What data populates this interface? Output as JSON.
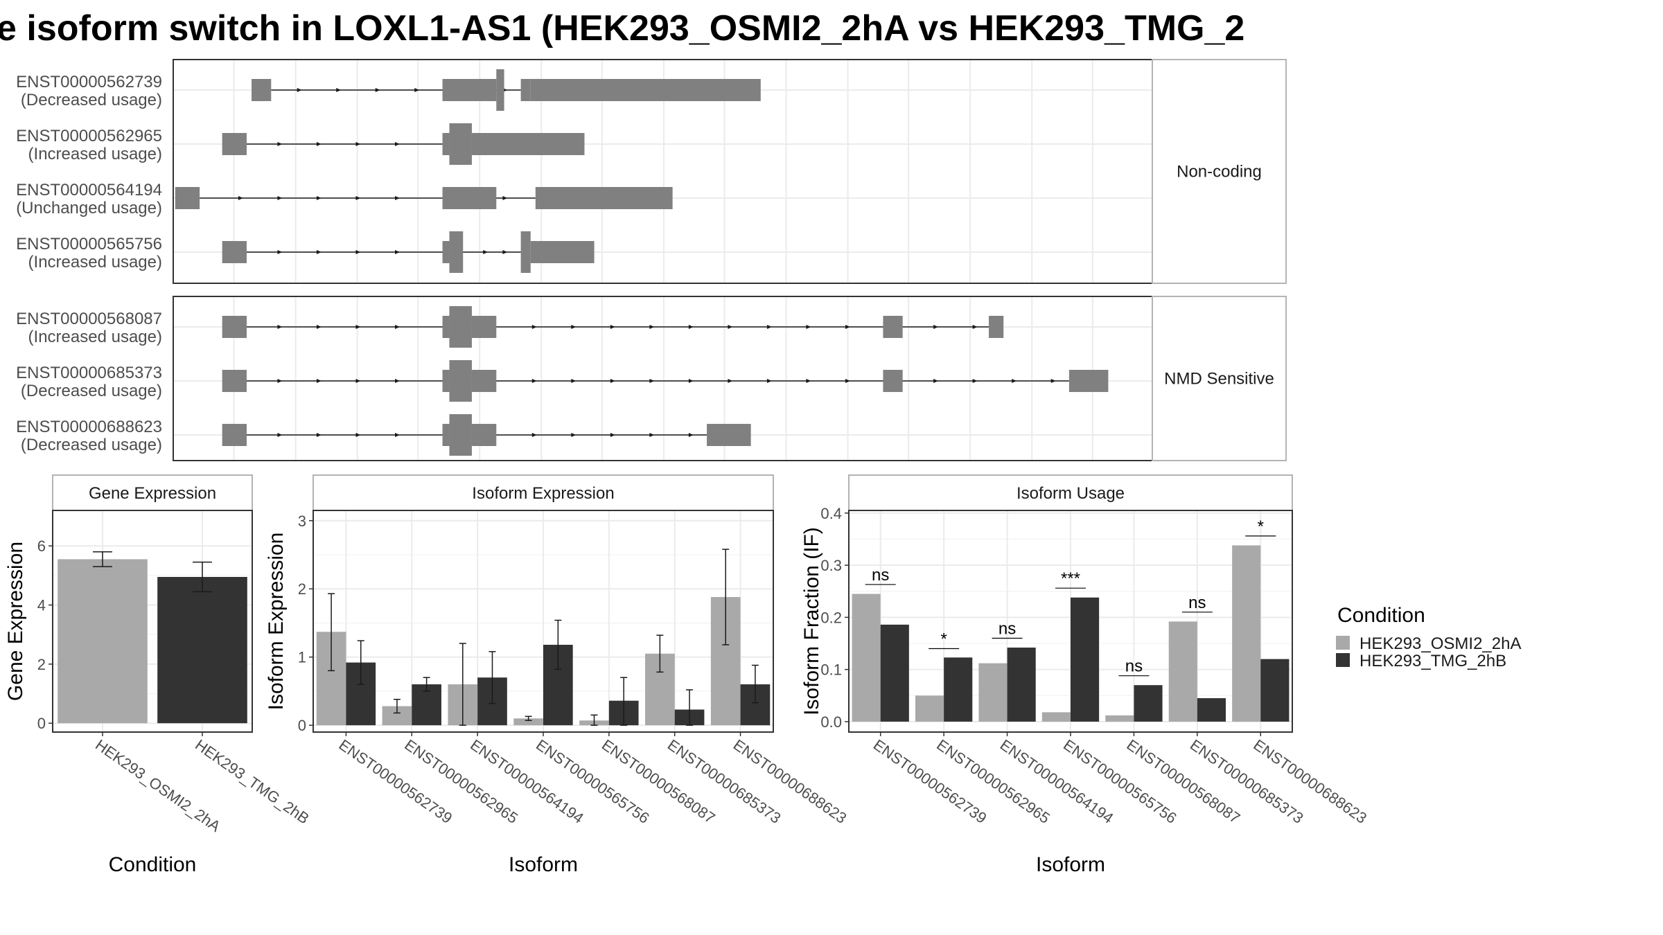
{
  "title": "e isoform switch in LOXL1-AS1 (HEK293_OSMI2_2hA vs HEK293_TMG_2",
  "colors": {
    "exon": "#808080",
    "intron": "#1a1a1a",
    "cond1": "#a9a9a9",
    "cond2": "#333333",
    "grid": "#ebebeb",
    "border": "#333333",
    "facet_border": "#b3b3b3"
  },
  "transcript_panel": {
    "x_range": [
      0,
      1000
    ],
    "groups": [
      {
        "label": "Non-coding",
        "transcripts": [
          {
            "id": "ENST00000562739",
            "usage": "(Decreased usage)",
            "exons": [
              [
                80,
                100,
                "thin"
              ],
              [
                275,
                330,
                "thick"
              ],
              [
                330,
                338,
                "tall"
              ],
              [
                355,
                365,
                "thick"
              ],
              [
                365,
                600,
                "thick"
              ]
            ],
            "intron_start": 100,
            "intron_end": 355,
            "arrows": [
              130,
              170,
              210,
              250,
              290,
              340
            ]
          },
          {
            "id": "ENST00000562965",
            "usage": "(Increased usage)",
            "exons": [
              [
                50,
                75,
                "thin"
              ],
              [
                275,
                282,
                "thick"
              ],
              [
                282,
                305,
                "tall"
              ],
              [
                305,
                420,
                "thick"
              ]
            ],
            "intron_start": 75,
            "intron_end": 275,
            "arrows": [
              110,
              150,
              190,
              230
            ]
          },
          {
            "id": "ENST00000564194",
            "usage": "(Unchanged usage)",
            "exons": [
              [
                2,
                27,
                "thin"
              ],
              [
                275,
                330,
                "thick"
              ],
              [
                370,
                510,
                "thick"
              ]
            ],
            "intron_start": 27,
            "intron_end": 370,
            "arrows": [
              70,
              110,
              150,
              190,
              230,
              340
            ]
          },
          {
            "id": "ENST00000565756",
            "usage": "(Increased usage)",
            "exons": [
              [
                50,
                75,
                "thin"
              ],
              [
                275,
                282,
                "thick"
              ],
              [
                282,
                296,
                "tall"
              ],
              [
                355,
                365,
                "tall"
              ],
              [
                365,
                430,
                "thick"
              ]
            ],
            "intron_start": 75,
            "intron_end": 355,
            "arrows": [
              110,
              150,
              190,
              230,
              320,
              340
            ]
          }
        ]
      },
      {
        "label": "NMD Sensitive",
        "transcripts": [
          {
            "id": "ENST00000568087",
            "usage": "(Increased usage)",
            "exons": [
              [
                50,
                75,
                "thin"
              ],
              [
                275,
                282,
                "thick"
              ],
              [
                282,
                305,
                "tall"
              ],
              [
                305,
                330,
                "thick"
              ],
              [
                725,
                745,
                "thin"
              ],
              [
                833,
                848,
                "thin"
              ]
            ],
            "intron_start": 75,
            "intron_end": 833,
            "arrows": [
              110,
              150,
              190,
              230,
              370,
              410,
              450,
              490,
              530,
              570,
              610,
              650,
              690,
              780,
              820
            ]
          },
          {
            "id": "ENST00000685373",
            "usage": "(Decreased usage)",
            "exons": [
              [
                50,
                75,
                "thin"
              ],
              [
                275,
                282,
                "thick"
              ],
              [
                282,
                305,
                "tall"
              ],
              [
                305,
                330,
                "thick"
              ],
              [
                725,
                745,
                "thin"
              ],
              [
                915,
                955,
                "thin"
              ]
            ],
            "intron_start": 75,
            "intron_end": 915,
            "arrows": [
              110,
              150,
              190,
              230,
              370,
              410,
              450,
              490,
              530,
              570,
              610,
              650,
              690,
              780,
              820,
              860,
              900
            ]
          },
          {
            "id": "ENST00000688623",
            "usage": "(Decreased usage)",
            "exons": [
              [
                50,
                75,
                "thin"
              ],
              [
                275,
                282,
                "thick"
              ],
              [
                282,
                305,
                "tall"
              ],
              [
                305,
                330,
                "thick"
              ],
              [
                545,
                590,
                "thin"
              ]
            ],
            "intron_start": 75,
            "intron_end": 545,
            "arrows": [
              110,
              150,
              190,
              230,
              370,
              410,
              450,
              490,
              530
            ]
          }
        ]
      }
    ]
  },
  "legend": {
    "title": "Condition",
    "items": [
      "HEK293_OSMI2_2hA",
      "HEK293_TMG_2hB"
    ]
  },
  "chart_data": [
    {
      "type": "bar",
      "title": "Gene Expression",
      "xlabel": "Condition",
      "ylabel": "Gene Expression",
      "categories": [
        "HEK293_OSMI2_2hA",
        "HEK293_TMG_2hB"
      ],
      "values": [
        5.55,
        4.95
      ],
      "error": [
        [
          5.3,
          5.8
        ],
        [
          4.45,
          5.45
        ]
      ],
      "ylim": [
        -0.3,
        7.2
      ],
      "yticks": [
        0,
        2,
        4,
        6
      ]
    },
    {
      "type": "bar",
      "title": "Isoform Expression",
      "xlabel": "Isoform",
      "ylabel": "Isoform Expression",
      "categories": [
        "ENST00000562739",
        "ENST00000562965",
        "ENST00000564194",
        "ENST00000565756",
        "ENST00000568087",
        "ENST00000685373",
        "ENST00000688623"
      ],
      "series": [
        {
          "name": "HEK293_OSMI2_2hA",
          "values": [
            1.37,
            0.28,
            0.6,
            0.1,
            0.07,
            1.05,
            1.88
          ],
          "error": [
            [
              0.8,
              1.93
            ],
            [
              0.18,
              0.38
            ],
            [
              0.0,
              1.2
            ],
            [
              0.07,
              0.13
            ],
            [
              0.0,
              0.15
            ],
            [
              0.78,
              1.32
            ],
            [
              1.18,
              2.58
            ]
          ]
        },
        {
          "name": "HEK293_TMG_2hB",
          "values": [
            0.92,
            0.6,
            0.7,
            1.18,
            0.36,
            0.23,
            0.6
          ],
          "error": [
            [
              0.6,
              1.24
            ],
            [
              0.5,
              0.7
            ],
            [
              0.32,
              1.08
            ],
            [
              0.82,
              1.54
            ],
            [
              0.0,
              0.7
            ],
            [
              0.0,
              0.52
            ],
            [
              0.33,
              0.88
            ]
          ]
        }
      ],
      "ylim": [
        -0.1,
        3.15
      ],
      "yticks": [
        0,
        1,
        2,
        3
      ]
    },
    {
      "type": "bar",
      "title": "Isoform Usage",
      "xlabel": "Isoform",
      "ylabel": "Isoform Fraction (IF)",
      "categories": [
        "ENST00000562739",
        "ENST00000562965",
        "ENST00000564194",
        "ENST00000565756",
        "ENST00000568087",
        "ENST00000685373",
        "ENST00000688623"
      ],
      "series": [
        {
          "name": "HEK293_OSMI2_2hA",
          "values": [
            0.245,
            0.05,
            0.112,
            0.018,
            0.012,
            0.192,
            0.338
          ]
        },
        {
          "name": "HEK293_TMG_2hB",
          "values": [
            0.186,
            0.123,
            0.142,
            0.238,
            0.07,
            0.045,
            0.12
          ]
        }
      ],
      "significance": [
        "ns",
        "*",
        "ns",
        "***",
        "ns",
        "ns",
        "*"
      ],
      "sig_y": [
        0.263,
        0.14,
        0.16,
        0.256,
        0.088,
        0.21,
        0.356
      ],
      "ylim": [
        -0.02,
        0.405
      ],
      "yticks": [
        0.0,
        0.1,
        0.2,
        0.3,
        0.4
      ]
    }
  ]
}
